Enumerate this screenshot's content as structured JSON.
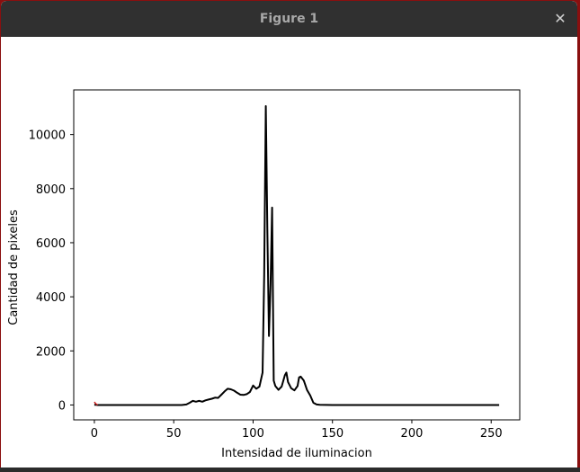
{
  "window": {
    "title": "Figure 1",
    "close_glyph": "✕",
    "close_icon": "close-icon"
  },
  "chart_data": {
    "type": "line",
    "xlabel": "Intensidad de iluminacion",
    "ylabel": "Cantidad de pixeles",
    "xlim": [
      -13,
      268
    ],
    "ylim": [
      -550,
      11650
    ],
    "xticks": [
      0,
      50,
      100,
      150,
      200,
      250
    ],
    "yticks": [
      0,
      2000,
      4000,
      6000,
      8000,
      10000
    ],
    "grid": false,
    "series": [
      {
        "color": "#000000",
        "x": [
          0,
          1,
          2,
          5,
          10,
          20,
          30,
          40,
          50,
          55,
          58,
          60,
          62,
          64,
          66,
          68,
          70,
          72,
          74,
          76,
          78,
          80,
          82,
          84,
          86,
          88,
          90,
          92,
          94,
          96,
          98,
          100,
          102,
          104,
          106,
          107,
          108,
          109,
          110,
          111,
          112,
          113,
          114,
          116,
          118,
          120,
          121,
          122,
          124,
          126,
          128,
          129,
          130,
          132,
          134,
          136,
          138,
          140,
          142,
          150,
          175,
          200,
          225,
          250,
          255
        ],
        "y": [
          10,
          5,
          0,
          0,
          0,
          0,
          0,
          0,
          0,
          0,
          20,
          80,
          150,
          120,
          150,
          120,
          170,
          200,
          230,
          270,
          260,
          380,
          500,
          600,
          580,
          530,
          450,
          380,
          370,
          400,
          480,
          720,
          600,
          680,
          1200,
          4800,
          11050,
          6500,
          2550,
          4500,
          7300,
          900,
          700,
          560,
          680,
          1100,
          1200,
          850,
          620,
          540,
          700,
          1020,
          1050,
          900,
          550,
          350,
          80,
          20,
          10,
          0,
          0,
          0,
          0,
          0,
          0
        ]
      },
      {
        "color": "#c81e1e",
        "x": [
          0,
          1,
          2
        ],
        "y": [
          110,
          40,
          0
        ]
      }
    ]
  }
}
